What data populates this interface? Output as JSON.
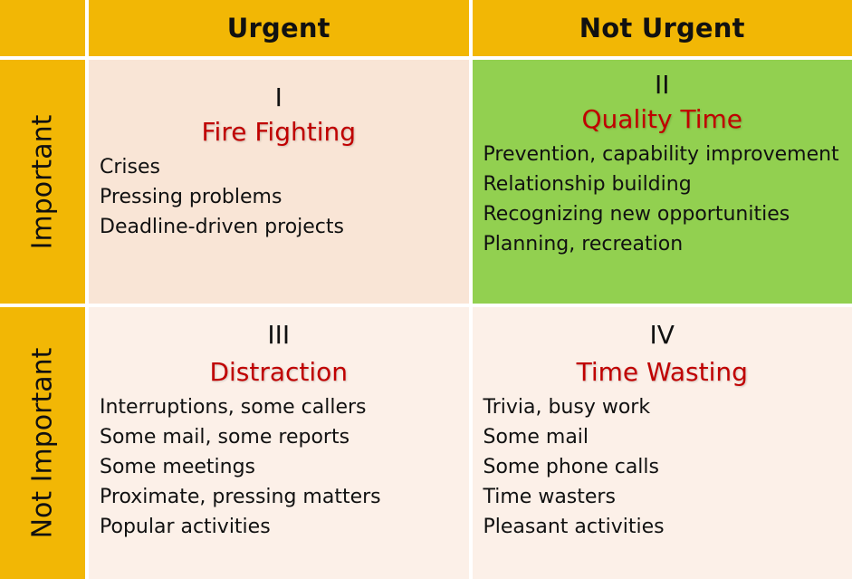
{
  "headers": {
    "col1": "Urgent",
    "col2": "Not Urgent",
    "row1": "Important",
    "row2": "Not Important"
  },
  "colors": {
    "header_bg": "#F2B705",
    "q1_bg": "#F9E5D6",
    "q2_bg": "#92D050",
    "q3_bg": "#FCF0E8",
    "q4_bg": "#FCF0E8",
    "title_color": "#C00000"
  },
  "quadrants": [
    {
      "numeral": "I",
      "title": "Fire Fighting",
      "items": [
        "Crises",
        "Pressing problems",
        "Deadline-driven projects"
      ]
    },
    {
      "numeral": "II",
      "title": "Quality Time",
      "items": [
        "Prevention, capability improvement",
        "Relationship building",
        "Recognizing new opportunities",
        "Planning, recreation"
      ]
    },
    {
      "numeral": "III",
      "title": "Distraction",
      "items": [
        "Interruptions, some callers",
        "Some mail, some reports",
        "Some meetings",
        "Proximate, pressing matters",
        "Popular activities"
      ]
    },
    {
      "numeral": "IV",
      "title": "Time Wasting",
      "items": [
        "Trivia, busy work",
        "Some mail",
        "Some phone calls",
        "Time wasters",
        "Pleasant activities"
      ]
    }
  ]
}
